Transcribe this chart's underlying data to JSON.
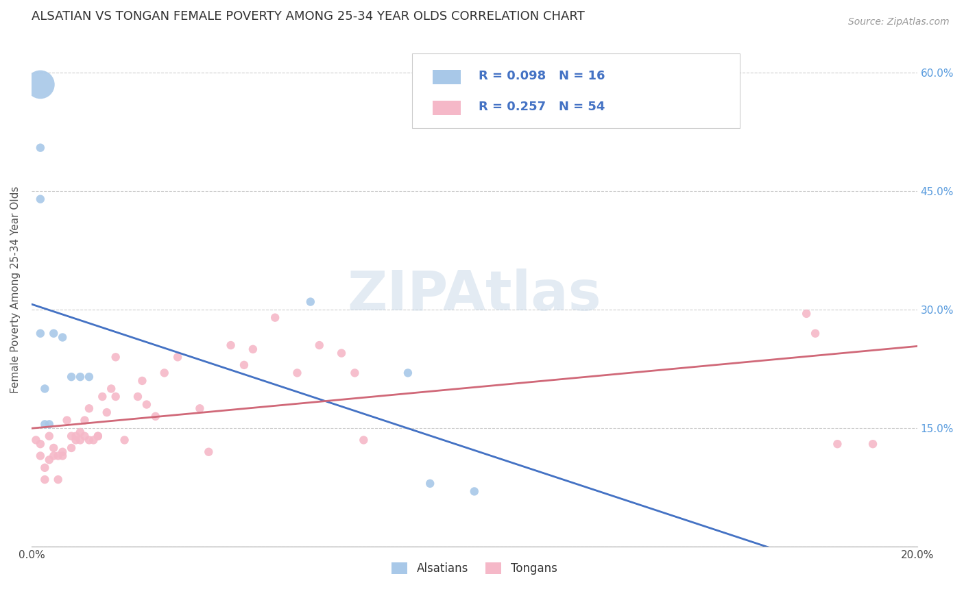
{
  "title": "ALSATIAN VS TONGAN FEMALE POVERTY AMONG 25-34 YEAR OLDS CORRELATION CHART",
  "source": "Source: ZipAtlas.com",
  "ylabel": "Female Poverty Among 25-34 Year Olds",
  "xlim": [
    0.0,
    0.2
  ],
  "ylim": [
    0.0,
    0.65
  ],
  "xticks": [
    0.0,
    0.04,
    0.08,
    0.12,
    0.16,
    0.2
  ],
  "xticklabels": [
    "0.0%",
    "",
    "",
    "",
    "",
    "20.0%"
  ],
  "yticks": [
    0.0,
    0.15,
    0.3,
    0.45,
    0.6
  ],
  "yticklabels_right": [
    "",
    "15.0%",
    "30.0%",
    "45.0%",
    "60.0%"
  ],
  "watermark": "ZIPAtlas",
  "alsatians_color": "#a8c8e8",
  "tongans_color": "#f5b8c8",
  "alsatians_line_color": "#4472c4",
  "alsatians_dash_color": "#aabbdd",
  "tongans_line_color": "#d06878",
  "alsatians_R": 0.098,
  "alsatians_N": 16,
  "tongans_R": 0.257,
  "tongans_N": 54,
  "legend_text_color": "#4472c4",
  "alsatians_x": [
    0.002,
    0.005,
    0.007,
    0.009,
    0.011,
    0.013,
    0.002,
    0.002,
    0.002,
    0.003,
    0.003,
    0.004,
    0.063,
    0.085,
    0.09,
    0.1
  ],
  "alsatians_y": [
    0.27,
    0.27,
    0.265,
    0.215,
    0.215,
    0.215,
    0.585,
    0.505,
    0.44,
    0.2,
    0.155,
    0.155,
    0.31,
    0.22,
    0.08,
    0.07
  ],
  "alsatians_size": [
    80,
    80,
    80,
    80,
    80,
    80,
    900,
    80,
    80,
    80,
    80,
    80,
    80,
    80,
    80,
    80
  ],
  "tongans_x": [
    0.001,
    0.002,
    0.002,
    0.003,
    0.003,
    0.004,
    0.004,
    0.005,
    0.005,
    0.006,
    0.006,
    0.007,
    0.007,
    0.008,
    0.009,
    0.009,
    0.01,
    0.01,
    0.011,
    0.011,
    0.012,
    0.012,
    0.013,
    0.013,
    0.014,
    0.015,
    0.015,
    0.016,
    0.017,
    0.018,
    0.019,
    0.019,
    0.021,
    0.024,
    0.025,
    0.026,
    0.028,
    0.03,
    0.033,
    0.038,
    0.04,
    0.045,
    0.048,
    0.05,
    0.055,
    0.06,
    0.065,
    0.07,
    0.073,
    0.075,
    0.175,
    0.177,
    0.182,
    0.19
  ],
  "tongans_y": [
    0.135,
    0.115,
    0.13,
    0.1,
    0.085,
    0.14,
    0.11,
    0.115,
    0.125,
    0.115,
    0.085,
    0.115,
    0.12,
    0.16,
    0.125,
    0.14,
    0.135,
    0.14,
    0.145,
    0.135,
    0.16,
    0.14,
    0.135,
    0.175,
    0.135,
    0.14,
    0.14,
    0.19,
    0.17,
    0.2,
    0.19,
    0.24,
    0.135,
    0.19,
    0.21,
    0.18,
    0.165,
    0.22,
    0.24,
    0.175,
    0.12,
    0.255,
    0.23,
    0.25,
    0.29,
    0.22,
    0.255,
    0.245,
    0.22,
    0.135,
    0.295,
    0.27,
    0.13,
    0.13
  ],
  "tongans_size": [
    80,
    80,
    80,
    80,
    80,
    80,
    80,
    80,
    80,
    80,
    80,
    80,
    80,
    80,
    80,
    80,
    80,
    80,
    80,
    80,
    80,
    80,
    80,
    80,
    80,
    80,
    80,
    80,
    80,
    80,
    80,
    80,
    80,
    80,
    80,
    80,
    80,
    80,
    80,
    80,
    80,
    80,
    80,
    80,
    80,
    80,
    80,
    80,
    80,
    80,
    80,
    80,
    80,
    80
  ]
}
